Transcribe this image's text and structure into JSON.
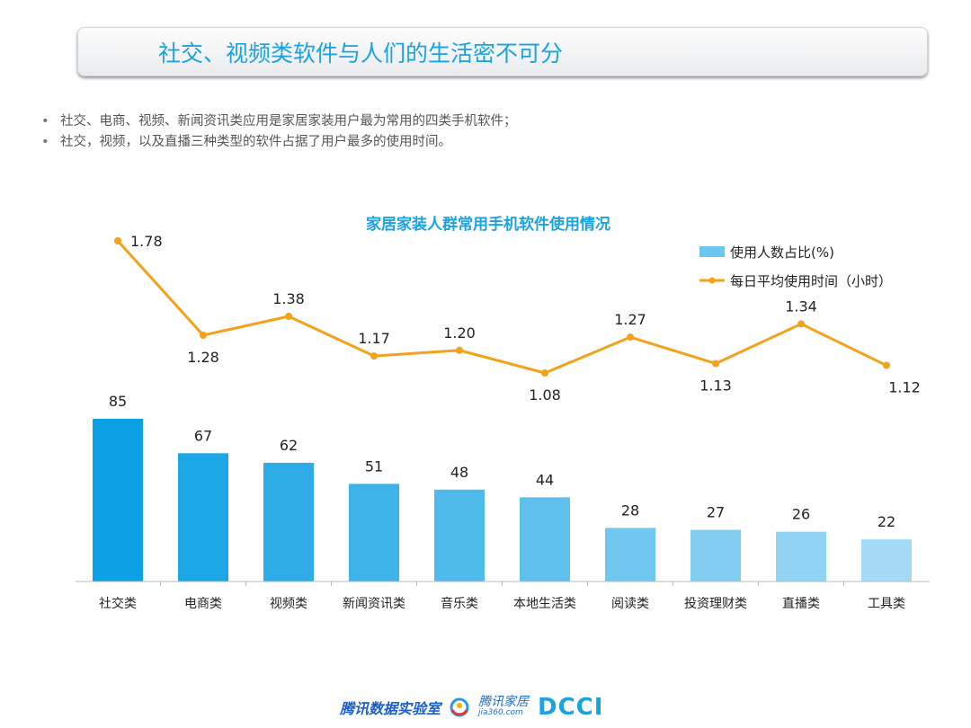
{
  "header": {
    "title": "社交、视频类软件与人们的生活密不可分"
  },
  "bullets": [
    "社交、电商、视频、新闻资讯类应用是家居家装用户最为常用的四类手机软件；",
    "社交，视频，以及直播三种类型的软件占据了用户最多的使用时间。"
  ],
  "chart_data": {
    "type": "bar+line",
    "title": "家居家装人群常用手机软件使用情况",
    "categories": [
      "社交类",
      "电商类",
      "视频类",
      "新闻资讯类",
      "音乐类",
      "本地生活类",
      "阅读类",
      "投资理财类",
      "直播类",
      "工具类"
    ],
    "series": [
      {
        "name": "使用人数占比(%)",
        "type": "bar",
        "values": [
          85,
          67,
          62,
          51,
          48,
          44,
          28,
          27,
          26,
          22
        ],
        "labels": [
          "85",
          "67",
          "62",
          "51",
          "48",
          "44",
          "28",
          "27",
          "26",
          "22"
        ]
      },
      {
        "name": "每日平均使用时间（小时）",
        "type": "line",
        "values": [
          1.78,
          1.28,
          1.38,
          1.17,
          1.2,
          1.08,
          1.27,
          1.13,
          1.34,
          1.12
        ],
        "labels": [
          "1.78",
          "1.28",
          "1.38",
          "1.17",
          "1.20",
          "1.08",
          "1.27",
          "1.13",
          "1.34",
          "1.12"
        ]
      }
    ],
    "legend": "top-right",
    "grid": false,
    "colors": {
      "bar_dark": "#0b9fe4",
      "bar_light": "#a3dbf6",
      "line": "#f2a21b",
      "title": "#1aa3e0"
    }
  },
  "footer": {
    "lab": "腾讯数据实验室",
    "jia_name": "腾讯家居",
    "jia_url": "jia360.com",
    "dcci": "DCCI"
  }
}
